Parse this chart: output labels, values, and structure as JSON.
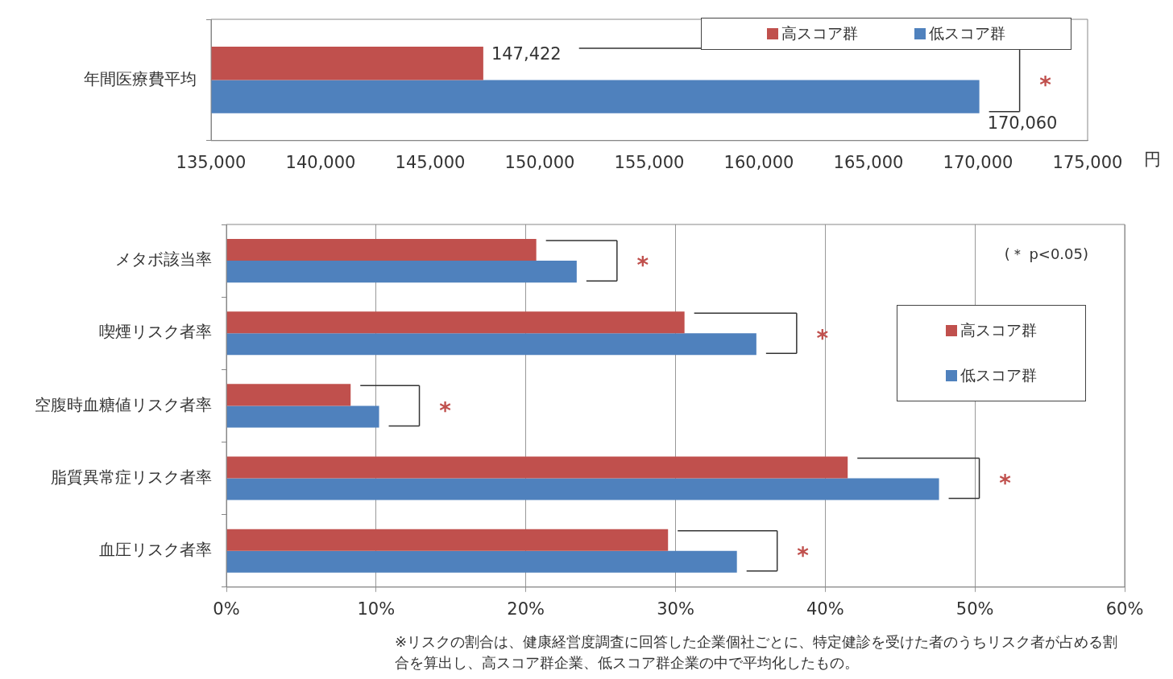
{
  "chart_data": [
    {
      "type": "bar",
      "orientation": "horizontal",
      "categories": [
        "年間医療費平均"
      ],
      "series": [
        {
          "name": "高スコア群",
          "color": "#c0504d",
          "values": [
            147422
          ],
          "value_labels": [
            "147,422"
          ]
        },
        {
          "name": "低スコア群",
          "color": "#4f81bd",
          "values": [
            170060
          ],
          "value_labels": [
            "170,060"
          ]
        }
      ],
      "xlim": [
        135000,
        175000
      ],
      "xticks": [
        {
          "value": 135000,
          "label": "135,000"
        },
        {
          "value": 140000,
          "label": "140,000"
        },
        {
          "value": 145000,
          "label": "145,000"
        },
        {
          "value": 150000,
          "label": "150,000"
        },
        {
          "value": 155000,
          "label": "155,000"
        },
        {
          "value": 160000,
          "label": "160,000"
        },
        {
          "value": 165000,
          "label": "165,000"
        },
        {
          "value": 170000,
          "label": "170,000"
        },
        {
          "value": 175000,
          "label": "175,000"
        }
      ],
      "xlabel": "円",
      "grid": false,
      "legend": "top right",
      "annotations": [
        "*"
      ]
    },
    {
      "type": "bar",
      "orientation": "horizontal",
      "categories": [
        "メタボ該当率",
        "喫煙リスク者率",
        "空腹時血糖値リスク者率",
        "脂質異常症リスク者率",
        "血圧リスク者率"
      ],
      "series": [
        {
          "name": "高スコア群",
          "color": "#c0504d",
          "values": [
            20.7,
            30.6,
            8.3,
            41.5,
            29.5
          ]
        },
        {
          "name": "低スコア群",
          "color": "#4f81bd",
          "values": [
            23.4,
            35.4,
            10.2,
            47.6,
            34.1
          ]
        }
      ],
      "xlim": [
        0,
        60
      ],
      "xticks": [
        {
          "value": 0,
          "label": "0%"
        },
        {
          "value": 10,
          "label": "10%"
        },
        {
          "value": 20,
          "label": "20%"
        },
        {
          "value": 30,
          "label": "30%"
        },
        {
          "value": 40,
          "label": "40%"
        },
        {
          "value": 50,
          "label": "50%"
        },
        {
          "value": 60,
          "label": "60%"
        }
      ],
      "grid": "x",
      "legend": "right",
      "annotations": [
        "(＊ p<0.05)",
        "※リスクの割合は、健康経営度調査に回答した企業個社ごとに、特定健診を受けた者のうちリスク者が占める割合を算出し、高スコア群企業、低スコア群企業の中で平均化したもの。",
        "*",
        "*",
        "*",
        "*",
        "*"
      ]
    }
  ]
}
